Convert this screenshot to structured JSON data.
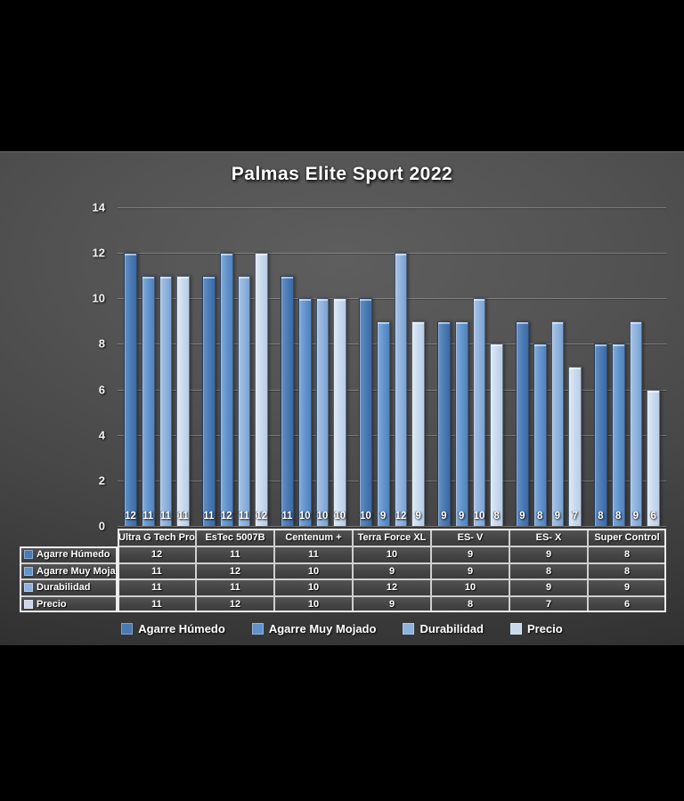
{
  "window": {
    "background_color": "#000000",
    "panel_center_color": "#5e5e5e",
    "panel_edge_color": "#2a2a2a"
  },
  "chart": {
    "title": "Palmas Elite Sport 2022"
  },
  "chart_data": {
    "type": "bar",
    "title": "Palmas Elite Sport 2022",
    "categories": [
      "Ultra G Tech Pro",
      "EsTec 5007B",
      "Centenum +",
      "Terra Force XL",
      "ES- V",
      "ES- X",
      "Super Control"
    ],
    "series": [
      {
        "name": "Agarre Húmedo",
        "values": [
          12,
          11,
          11,
          10,
          9,
          9,
          8
        ],
        "color": "#4a7ab5",
        "color_light": "#6590c4",
        "color_dark": "#3c69a3"
      },
      {
        "name": "Agarre Muy Mojado",
        "values": [
          11,
          12,
          10,
          9,
          9,
          8,
          8
        ],
        "color": "#6093cc",
        "color_light": "#83abda",
        "color_dark": "#5281be"
      },
      {
        "name": "Durabilidad",
        "values": [
          11,
          11,
          10,
          12,
          10,
          9,
          9
        ],
        "color": "#8db2dd",
        "color_light": "#a8c4e9",
        "color_dark": "#7aa1d1"
      },
      {
        "name": "Precio",
        "values": [
          11,
          12,
          10,
          9,
          8,
          7,
          6
        ],
        "color": "#c8d9ee",
        "color_light": "#dfe9f6",
        "color_dark": "#b8cde6"
      }
    ],
    "xlabel": "",
    "ylabel": "",
    "ylim": [
      0,
      14
    ],
    "yticks": [
      0,
      2,
      4,
      6,
      8,
      10,
      12,
      14
    ],
    "grid": true,
    "gridline_color": "#7d7d7d",
    "legend_position": "bottom",
    "data_labels": "inside-base",
    "data_label_color": "#ffffff",
    "has_data_table": true
  }
}
